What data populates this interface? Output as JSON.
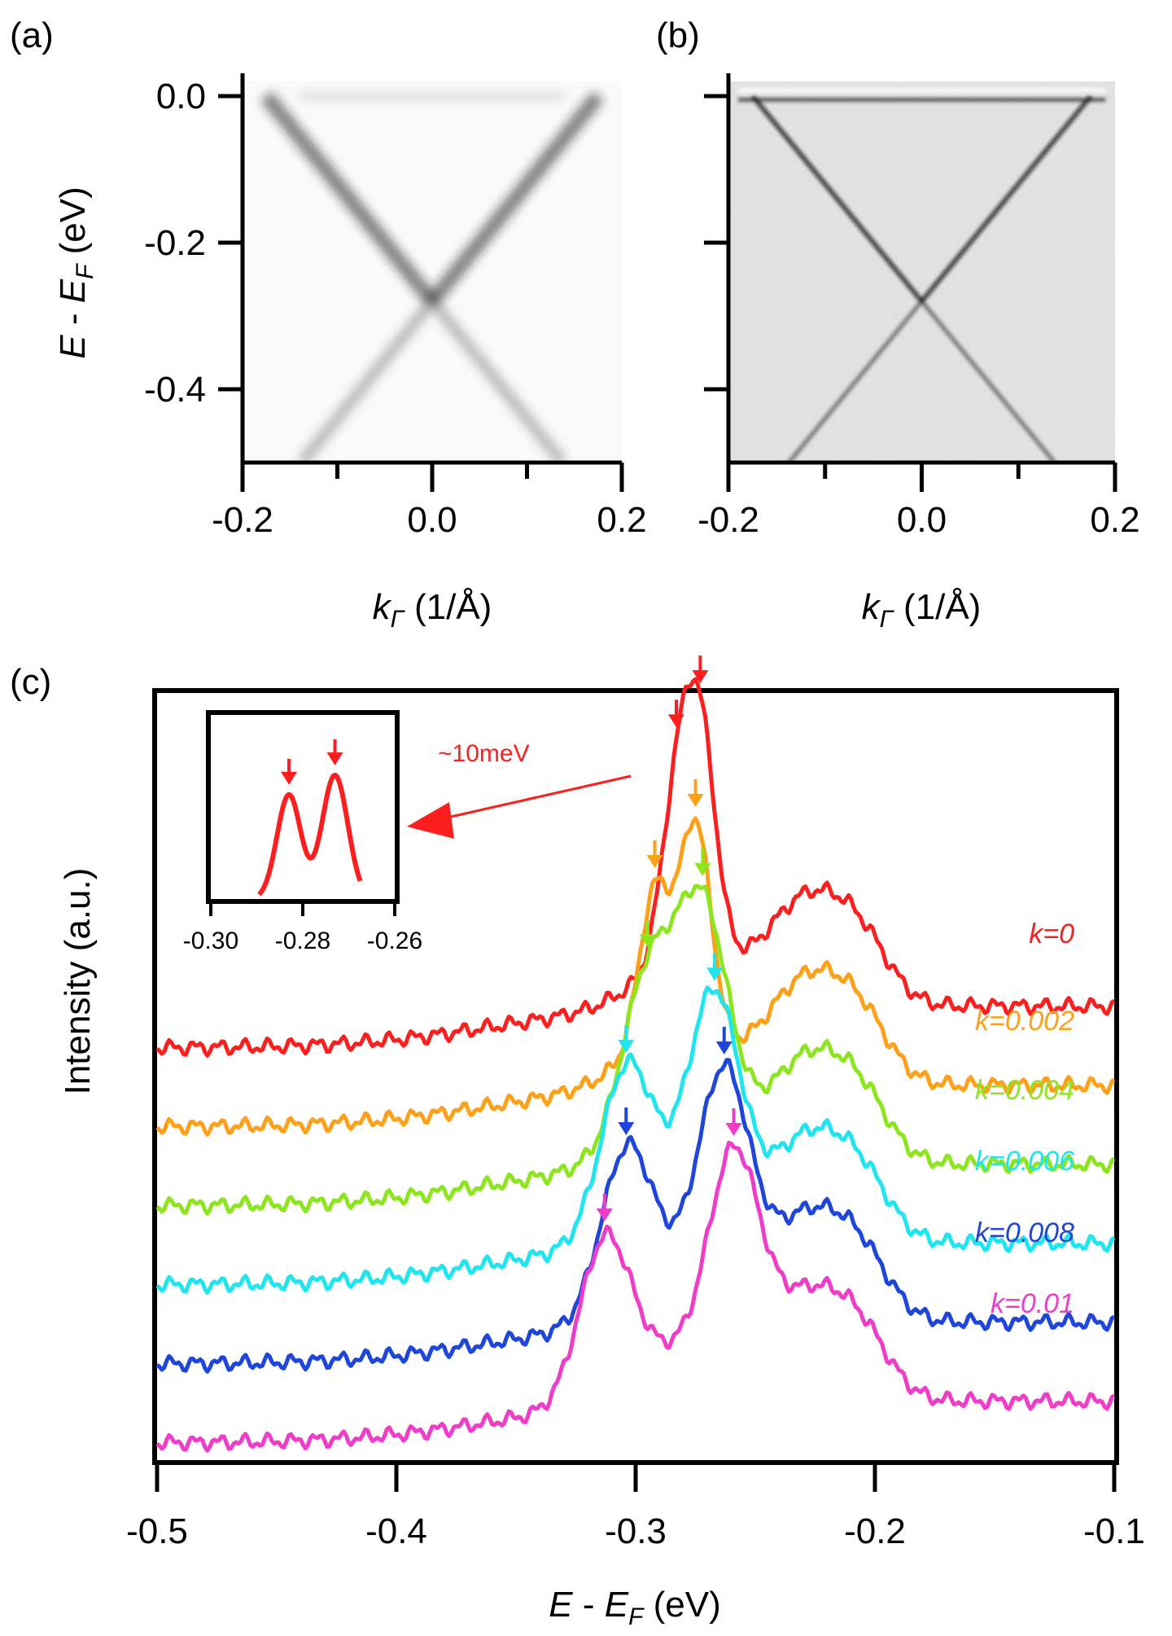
{
  "chart_data": [
    {
      "panel": "(a)",
      "type": "heatmap",
      "description_kind": "ARPES intensity map",
      "colormap": "grayscale (white low, black high)",
      "xlabel": "k_Γ (1/Å)",
      "ylabel": "E - E_F (eV)",
      "xlim": [
        -0.2,
        0.2
      ],
      "ylim": [
        -0.5,
        0.02
      ],
      "xticks": [
        -0.2,
        -0.1,
        0.0,
        0.1,
        0.2
      ],
      "xtick_labels": [
        "-0.2",
        "0.0",
        "0.2"
      ],
      "yticks": [
        0.0,
        -0.2,
        -0.4
      ],
      "ytick_labels": [
        "0.0",
        "-0.2",
        "-0.4"
      ],
      "features": {
        "dirac_point_k": 0.0,
        "dirac_point_E": -0.28,
        "band_velocity_eV_A": 1.6
      }
    },
    {
      "panel": "(b)",
      "type": "heatmap",
      "description_kind": "second-derivative ARPES map",
      "colormap": "grayscale",
      "xlabel": "k_Γ (1/Å)",
      "xlim": [
        -0.2,
        0.2
      ],
      "ylim": [
        -0.5,
        0.02
      ],
      "xtick_labels": [
        "-0.2",
        "0.0",
        "0.2"
      ],
      "features": {
        "dirac_point_k": 0.0,
        "dirac_point_E": -0.28
      }
    },
    {
      "panel": "(c)",
      "type": "line",
      "xlabel": "E - E_F (eV)",
      "ylabel": "Intensity (a.u.)",
      "xlim": [
        -0.5,
        -0.1
      ],
      "xticks": [
        -0.5,
        -0.4,
        -0.3,
        -0.2,
        -0.1
      ],
      "xtick_labels": [
        "-0.5",
        "-0.4",
        "-0.3",
        "-0.2",
        "-0.1"
      ],
      "series": [
        {
          "name": "k=0",
          "color": "#ff1e1e",
          "offset": 5.0,
          "peaks": [
            -0.283,
            -0.273
          ],
          "arrows": [
            -0.283,
            -0.273
          ]
        },
        {
          "name": "k=0.002",
          "color": "#ffa019",
          "offset": 4.0,
          "peaks": [
            -0.292,
            -0.275
          ],
          "arrows": [
            -0.292,
            -0.275
          ]
        },
        {
          "name": "k=0.004",
          "color": "#8ce61e",
          "offset": 3.0,
          "peaks": [
            -0.295,
            -0.272
          ],
          "arrows": [
            -0.295,
            -0.272
          ]
        },
        {
          "name": "k=0.006",
          "color": "#1ee6f0",
          "offset": 2.0,
          "peaks": [
            -0.304,
            -0.267
          ],
          "arrows": [
            -0.304,
            -0.267
          ]
        },
        {
          "name": "k=0.008",
          "color": "#1e46dc",
          "offset": 1.0,
          "peaks": [
            -0.304,
            -0.263
          ],
          "arrows": [
            -0.304,
            -0.263
          ]
        },
        {
          "name": "k=0.01",
          "color": "#f03cc8",
          "offset": 0.0,
          "peaks": [
            -0.313,
            -0.259
          ],
          "arrows": [
            -0.313,
            -0.259
          ]
        }
      ],
      "inset": {
        "xlim": [
          -0.3,
          -0.26
        ],
        "xtick_labels": [
          "-0.30",
          "-0.28",
          "-0.26"
        ],
        "series": "k=0",
        "peaks": [
          -0.283,
          -0.273
        ],
        "annotation": "~10meV"
      }
    }
  ],
  "panel_labels": {
    "a": "(a)",
    "b": "(b)",
    "c": "(c)"
  },
  "axis_text": {
    "ylabel_main": "E",
    "ylabel_minus": " - ",
    "ylabel_E": "E",
    "ylabel_sub": "F",
    "ylabel_unit": " (eV)",
    "k_symbol": "k",
    "k_sub": "Γ",
    "k_unit": " (1/Å)",
    "intensity_label": "Intensity  (a.u.)",
    "c_xlabel_E": "E",
    "c_xlabel_minus": " - ",
    "c_xlabel_E2": "E",
    "c_xlabel_sub": "F",
    "c_xlabel_unit": "  (eV)"
  },
  "tick_labels": {
    "a_y": [
      "0.0",
      "-0.2",
      "-0.4"
    ],
    "a_x": [
      "-0.2",
      "0.0",
      "0.2"
    ],
    "b_x": [
      "-0.2",
      "0.0",
      "0.2"
    ],
    "c_x": [
      "-0.5",
      "-0.4",
      "-0.3",
      "-0.2",
      "-0.1"
    ],
    "inset_x": [
      "-0.30",
      "-0.28",
      "-0.26"
    ]
  },
  "inset_annotation": "~10meV",
  "curve_labels": [
    "k=0",
    "k=0.002",
    "k=0.004",
    "k=0.006",
    "k=0.008",
    "k=0.01"
  ],
  "colors": {
    "red": "#ff1e1e",
    "orange": "#ffa019",
    "green": "#8ce61e",
    "cyan": "#1ee6f0",
    "blue": "#1e46dc",
    "magenta": "#f03cc8"
  }
}
